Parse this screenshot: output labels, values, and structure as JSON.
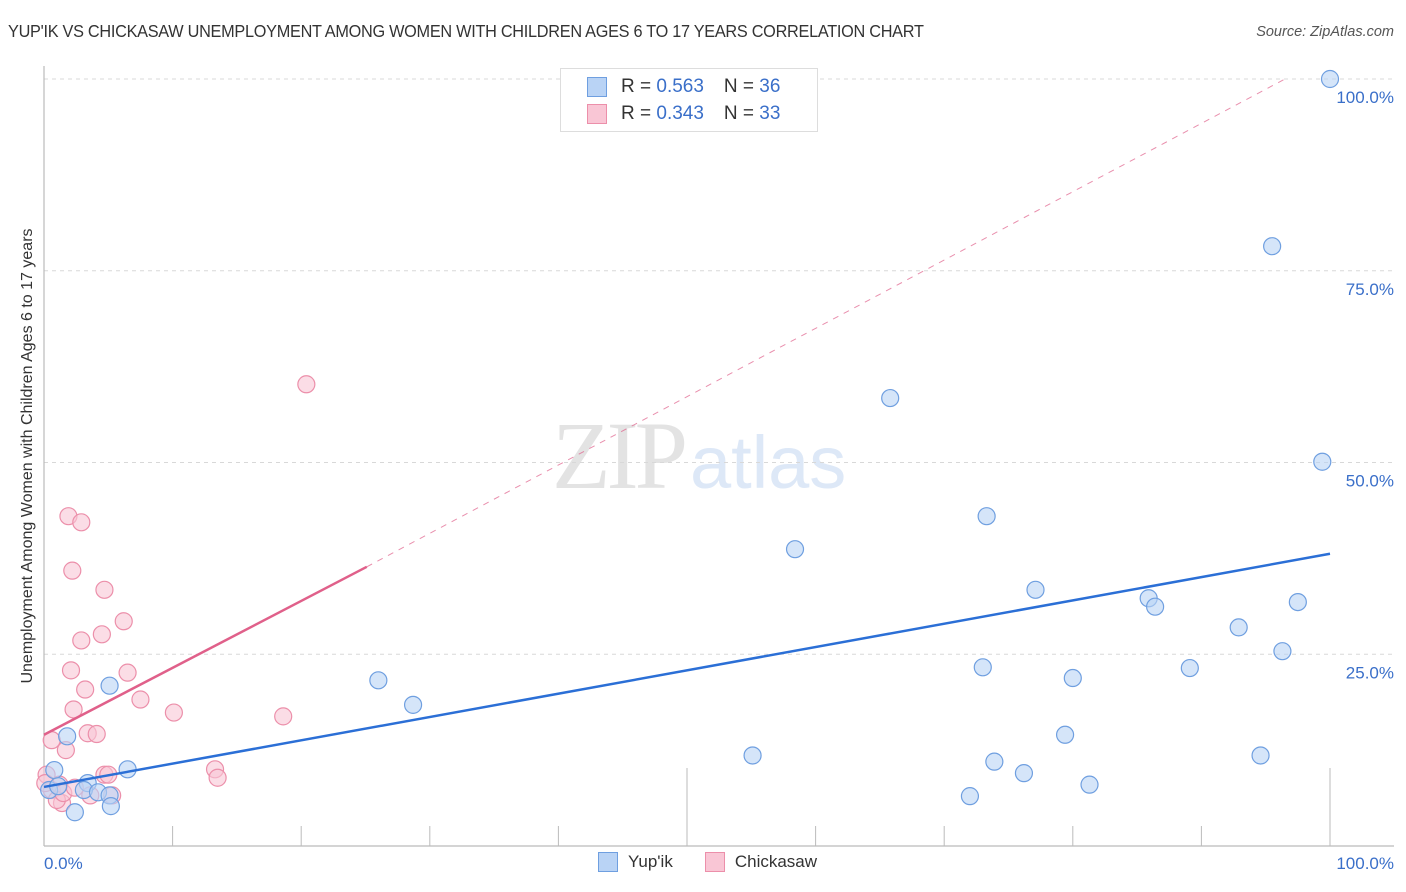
{
  "header": {
    "title": "YUP'IK VS CHICKASAW UNEMPLOYMENT AMONG WOMEN WITH CHILDREN AGES 6 TO 17 YEARS CORRELATION CHART",
    "source": "Source: ZipAtlas.com"
  },
  "legend": {
    "yupik": {
      "r_label": "R = ",
      "r_value": "0.563",
      "n_label": "N = ",
      "n_value": "36"
    },
    "chickasaw": {
      "r_label": "R = ",
      "r_value": "0.343",
      "n_label": "N = ",
      "n_value": "33"
    }
  },
  "bottom_legend": {
    "yupik": "Yup'ik",
    "chickasaw": "Chickasaw"
  },
  "watermark": {
    "zip": "ZIP",
    "atlas": "atlas"
  },
  "colors": {
    "yupik_fill": "#b9d3f5",
    "yupik_stroke": "#6f9fe0",
    "yupik_line": "#2b6fd6",
    "chickasaw_fill": "#f9c6d5",
    "chickasaw_stroke": "#ec8faa",
    "chickasaw_line": "#e0608a",
    "tick_text": "#3a6fc9",
    "grid": "#d8d8d8"
  },
  "chart_data": {
    "type": "scatter",
    "title": "YUP'IK VS CHICKASAW UNEMPLOYMENT AMONG WOMEN WITH CHILDREN AGES 6 TO 17 YEARS CORRELATION CHART",
    "xlabel": "",
    "ylabel": "Unemployment Among Women with Children Ages 6 to 17 years",
    "xlim": [
      0,
      100
    ],
    "ylim": [
      0,
      100
    ],
    "x_tick_labels": [
      "0.0%",
      "100.0%"
    ],
    "y_tick_labels": [
      "25.0%",
      "50.0%",
      "75.0%",
      "100.0%"
    ],
    "y_ticks": [
      25,
      50,
      75,
      100
    ],
    "grid": true,
    "legend_position": "top-center",
    "series": [
      {
        "name": "Yup'ik",
        "R": 0.563,
        "N": 36,
        "points": [
          [
            100,
            100
          ],
          [
            95.5,
            78.2
          ],
          [
            65.8,
            58.4
          ],
          [
            99.4,
            50.1
          ],
          [
            73.3,
            43.0
          ],
          [
            58.4,
            38.7
          ],
          [
            77.1,
            33.4
          ],
          [
            85.9,
            32.3
          ],
          [
            86.4,
            31.2
          ],
          [
            97.5,
            31.8
          ],
          [
            92.9,
            28.5
          ],
          [
            96.3,
            25.4
          ],
          [
            73.0,
            23.3
          ],
          [
            89.1,
            23.2
          ],
          [
            80.0,
            21.9
          ],
          [
            26.0,
            21.6
          ],
          [
            28.7,
            18.4
          ],
          [
            5.1,
            20.9
          ],
          [
            79.4,
            14.5
          ],
          [
            55.1,
            11.8
          ],
          [
            94.6,
            11.8
          ],
          [
            73.9,
            11.0
          ],
          [
            76.2,
            9.5
          ],
          [
            72.0,
            6.5
          ],
          [
            81.3,
            8.0
          ],
          [
            1.8,
            14.3
          ],
          [
            6.5,
            10.0
          ],
          [
            0.8,
            9.9
          ],
          [
            3.4,
            8.2
          ],
          [
            3.1,
            7.3
          ],
          [
            4.2,
            7.0
          ],
          [
            5.1,
            6.6
          ],
          [
            2.4,
            4.4
          ],
          [
            5.2,
            5.2
          ],
          [
            0.4,
            7.3
          ],
          [
            1.1,
            7.8
          ]
        ],
        "trend": {
          "x0": 0,
          "y0": 7.7,
          "x1": 100,
          "y1": 38.1
        }
      },
      {
        "name": "Chickasaw",
        "R": 0.343,
        "N": 33,
        "points": [
          [
            1.9,
            43.0
          ],
          [
            2.9,
            42.2
          ],
          [
            2.2,
            35.9
          ],
          [
            4.7,
            33.4
          ],
          [
            6.2,
            29.3
          ],
          [
            4.5,
            27.6
          ],
          [
            2.9,
            26.8
          ],
          [
            2.1,
            22.9
          ],
          [
            6.5,
            22.6
          ],
          [
            3.2,
            20.4
          ],
          [
            7.5,
            19.1
          ],
          [
            2.3,
            17.8
          ],
          [
            10.1,
            17.4
          ],
          [
            18.6,
            16.9
          ],
          [
            3.4,
            14.7
          ],
          [
            4.1,
            14.6
          ],
          [
            0.6,
            13.8
          ],
          [
            1.7,
            12.5
          ],
          [
            13.3,
            10.0
          ],
          [
            13.5,
            8.9
          ],
          [
            4.7,
            9.3
          ],
          [
            5.3,
            6.6
          ],
          [
            1.4,
            5.6
          ],
          [
            20.4,
            60.2
          ],
          [
            0.2,
            9.3
          ],
          [
            0.6,
            7.3
          ],
          [
            1.2,
            8.0
          ],
          [
            1.0,
            6.0
          ],
          [
            1.5,
            6.9
          ],
          [
            3.6,
            6.6
          ],
          [
            2.4,
            7.6
          ],
          [
            5.0,
            9.3
          ],
          [
            0.1,
            8.2
          ]
        ],
        "trend": {
          "x0": 0,
          "y0": 14.5,
          "x1": 25.1,
          "y1": 36.4,
          "dashed_extension_to": [
            96.5,
            100
          ]
        }
      }
    ]
  }
}
